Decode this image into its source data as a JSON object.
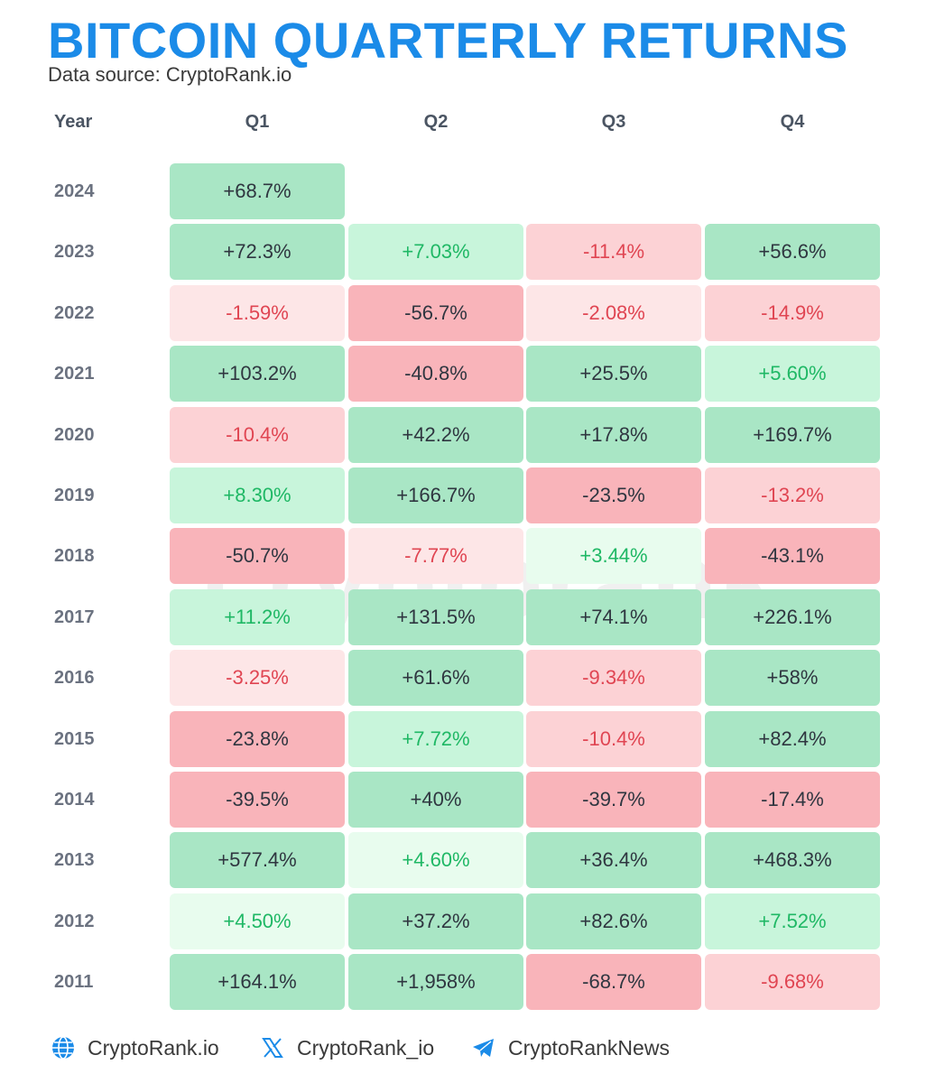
{
  "header": {
    "title": "BITCOIN QUARTERLY RETURNS",
    "subtitle": "Data source: CryptoRank.io"
  },
  "watermark": "cryptorank",
  "chart_data": {
    "type": "table",
    "title": "BITCOIN QUARTERLY RETURNS",
    "columns": [
      "Year",
      "Q1",
      "Q2",
      "Q3",
      "Q4"
    ],
    "rows": [
      {
        "year": "2024",
        "cells": [
          {
            "text": "+68.7%",
            "value": 68.7,
            "tone": "g-dark"
          },
          null,
          null,
          null
        ]
      },
      {
        "year": "2023",
        "cells": [
          {
            "text": "+72.3%",
            "value": 72.3,
            "tone": "g-dark"
          },
          {
            "text": "+7.03%",
            "value": 7.03,
            "tone": "g-light"
          },
          {
            "text": "-11.4%",
            "value": -11.4,
            "tone": "r-mid"
          },
          {
            "text": "+56.6%",
            "value": 56.6,
            "tone": "g-dark"
          }
        ]
      },
      {
        "year": "2022",
        "cells": [
          {
            "text": "-1.59%",
            "value": -1.59,
            "tone": "r-pale"
          },
          {
            "text": "-56.7%",
            "value": -56.7,
            "tone": "r-dark"
          },
          {
            "text": "-2.08%",
            "value": -2.08,
            "tone": "r-pale"
          },
          {
            "text": "-14.9%",
            "value": -14.9,
            "tone": "r-mid"
          }
        ]
      },
      {
        "year": "2021",
        "cells": [
          {
            "text": "+103.2%",
            "value": 103.2,
            "tone": "g-dark"
          },
          {
            "text": "-40.8%",
            "value": -40.8,
            "tone": "r-dark"
          },
          {
            "text": "+25.5%",
            "value": 25.5,
            "tone": "g-dark"
          },
          {
            "text": "+5.60%",
            "value": 5.6,
            "tone": "g-light"
          }
        ]
      },
      {
        "year": "2020",
        "cells": [
          {
            "text": "-10.4%",
            "value": -10.4,
            "tone": "r-mid"
          },
          {
            "text": "+42.2%",
            "value": 42.2,
            "tone": "g-dark"
          },
          {
            "text": "+17.8%",
            "value": 17.8,
            "tone": "g-dark"
          },
          {
            "text": "+169.7%",
            "value": 169.7,
            "tone": "g-dark"
          }
        ]
      },
      {
        "year": "2019",
        "cells": [
          {
            "text": "+8.30%",
            "value": 8.3,
            "tone": "g-light"
          },
          {
            "text": "+166.7%",
            "value": 166.7,
            "tone": "g-dark"
          },
          {
            "text": "-23.5%",
            "value": -23.5,
            "tone": "r-dark"
          },
          {
            "text": "-13.2%",
            "value": -13.2,
            "tone": "r-mid"
          }
        ]
      },
      {
        "year": "2018",
        "cells": [
          {
            "text": "-50.7%",
            "value": -50.7,
            "tone": "r-dark"
          },
          {
            "text": "-7.77%",
            "value": -7.77,
            "tone": "r-pale"
          },
          {
            "text": "+3.44%",
            "value": 3.44,
            "tone": "g-pale"
          },
          {
            "text": "-43.1%",
            "value": -43.1,
            "tone": "r-dark"
          }
        ]
      },
      {
        "year": "2017",
        "cells": [
          {
            "text": "+11.2%",
            "value": 11.2,
            "tone": "g-light"
          },
          {
            "text": "+131.5%",
            "value": 131.5,
            "tone": "g-dark"
          },
          {
            "text": "+74.1%",
            "value": 74.1,
            "tone": "g-dark"
          },
          {
            "text": "+226.1%",
            "value": 226.1,
            "tone": "g-dark"
          }
        ]
      },
      {
        "year": "2016",
        "cells": [
          {
            "text": "-3.25%",
            "value": -3.25,
            "tone": "r-pale"
          },
          {
            "text": "+61.6%",
            "value": 61.6,
            "tone": "g-dark"
          },
          {
            "text": "-9.34%",
            "value": -9.34,
            "tone": "r-mid"
          },
          {
            "text": "+58%",
            "value": 58,
            "tone": "g-dark"
          }
        ]
      },
      {
        "year": "2015",
        "cells": [
          {
            "text": "-23.8%",
            "value": -23.8,
            "tone": "r-dark"
          },
          {
            "text": "+7.72%",
            "value": 7.72,
            "tone": "g-light"
          },
          {
            "text": "-10.4%",
            "value": -10.4,
            "tone": "r-mid"
          },
          {
            "text": "+82.4%",
            "value": 82.4,
            "tone": "g-dark"
          }
        ]
      },
      {
        "year": "2014",
        "cells": [
          {
            "text": "-39.5%",
            "value": -39.5,
            "tone": "r-dark"
          },
          {
            "text": "+40%",
            "value": 40,
            "tone": "g-dark"
          },
          {
            "text": "-39.7%",
            "value": -39.7,
            "tone": "r-dark"
          },
          {
            "text": "-17.4%",
            "value": -17.4,
            "tone": "r-dark"
          }
        ]
      },
      {
        "year": "2013",
        "cells": [
          {
            "text": "+577.4%",
            "value": 577.4,
            "tone": "g-dark"
          },
          {
            "text": "+4.60%",
            "value": 4.6,
            "tone": "g-pale"
          },
          {
            "text": "+36.4%",
            "value": 36.4,
            "tone": "g-dark"
          },
          {
            "text": "+468.3%",
            "value": 468.3,
            "tone": "g-dark"
          }
        ]
      },
      {
        "year": "2012",
        "cells": [
          {
            "text": "+4.50%",
            "value": 4.5,
            "tone": "g-pale"
          },
          {
            "text": "+37.2%",
            "value": 37.2,
            "tone": "g-dark"
          },
          {
            "text": "+82.6%",
            "value": 82.6,
            "tone": "g-dark"
          },
          {
            "text": "+7.52%",
            "value": 7.52,
            "tone": "g-light"
          }
        ]
      },
      {
        "year": "2011",
        "cells": [
          {
            "text": "+164.1%",
            "value": 164.1,
            "tone": "g-dark"
          },
          {
            "text": "+1,958%",
            "value": 1958,
            "tone": "g-dark"
          },
          {
            "text": "-68.7%",
            "value": -68.7,
            "tone": "r-dark"
          },
          {
            "text": "-9.68%",
            "value": -9.68,
            "tone": "r-mid"
          }
        ]
      }
    ]
  },
  "footer": {
    "links": [
      {
        "icon": "globe-icon",
        "label": "CryptoRank.io"
      },
      {
        "icon": "x-logo-icon",
        "label": "CryptoRank_io"
      },
      {
        "icon": "telegram-icon",
        "label": "CryptoRankNews"
      }
    ]
  },
  "colors": {
    "title": "#1b8be8",
    "green_dark_bg": "#a9e6c5",
    "green_light_bg": "#c8f5db",
    "green_pale_bg": "#e8fcee",
    "red_dark_bg": "#f9b4ba",
    "red_mid_bg": "#fcd2d5",
    "red_pale_bg": "#fde6e7",
    "positive_text": "#1fb865",
    "negative_text": "#e04552"
  }
}
